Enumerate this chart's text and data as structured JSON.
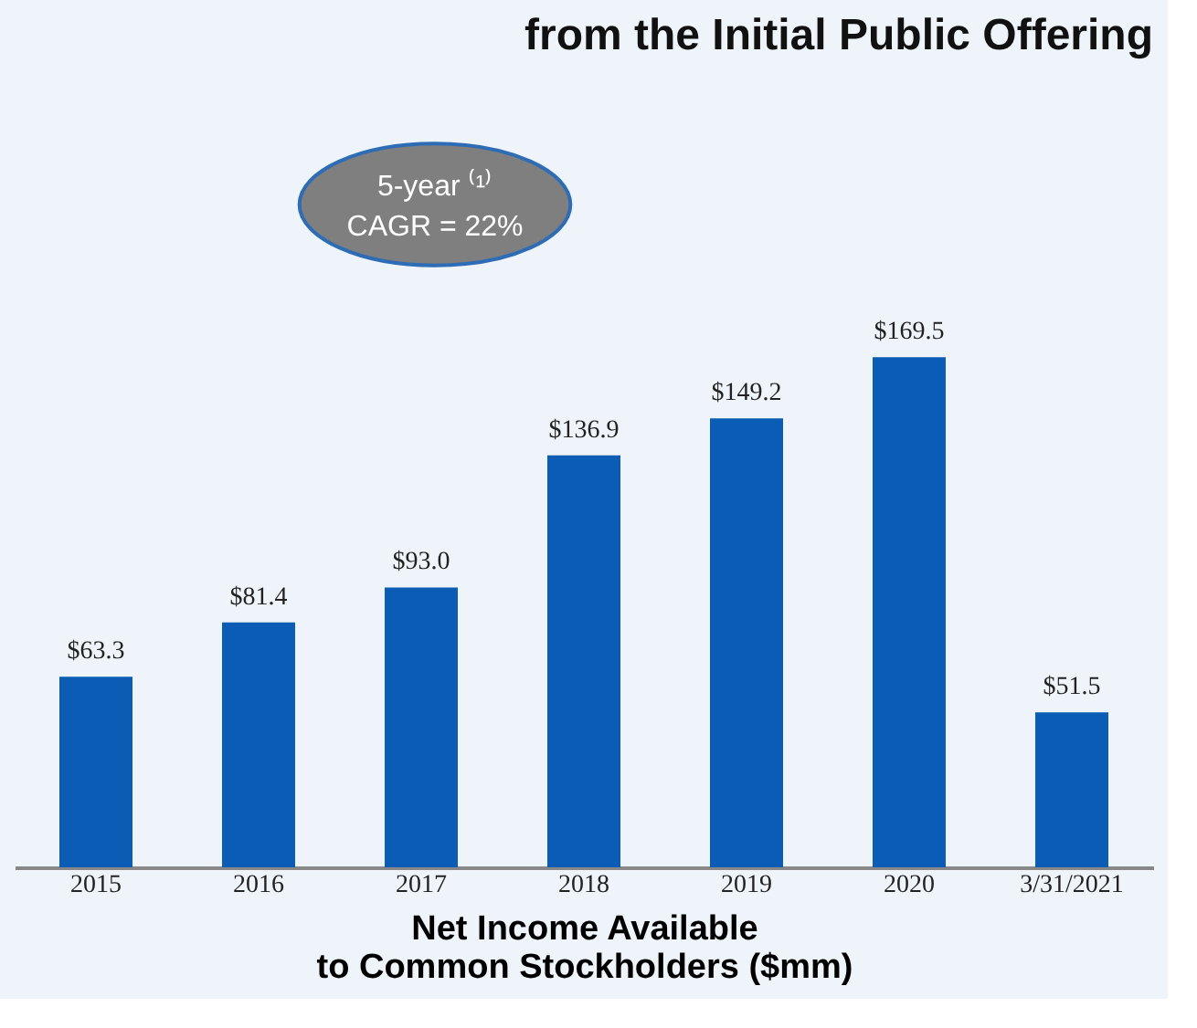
{
  "chart_data": {
    "type": "bar",
    "title": "from the Initial Public Offering",
    "categories": [
      "2015",
      "2016",
      "2017",
      "2018",
      "2019",
      "2020",
      "3/31/2021"
    ],
    "values": [
      63.3,
      81.4,
      93.0,
      136.9,
      149.2,
      169.5,
      51.5
    ],
    "value_labels": [
      "$63.3",
      "$81.4",
      "$93.0",
      "$136.9",
      "$149.2",
      "$169.5",
      "$51.5"
    ],
    "color": "#0b5cb5",
    "xlabel": "Net Income Available\nto Common Stockholders ($mm)",
    "annotations": [
      "5-year ⁽¹⁾\nCAGR = 22%"
    ],
    "grid": false
  }
}
